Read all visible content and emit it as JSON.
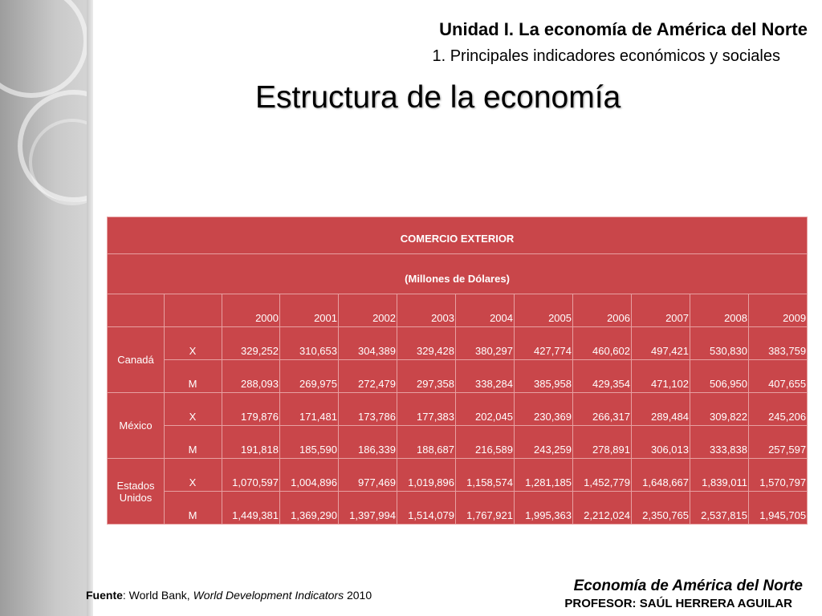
{
  "header": {
    "unit_title": "Unidad I. La economía de América del Norte",
    "subtitle": "1. Principales indicadores económicos y sociales"
  },
  "slide": {
    "title": "Estructura de la economía"
  },
  "table": {
    "title": "COMERCIO EXTERIOR",
    "units": "(Millones de Dólares)",
    "years": [
      "2000",
      "2001",
      "2002",
      "2003",
      "2004",
      "2005",
      "2006",
      "2007",
      "2008",
      "2009"
    ],
    "countries": [
      {
        "name": "Canadá",
        "rows": [
          {
            "type": "X",
            "values": [
              "329,252",
              "310,653",
              "304,389",
              "329,428",
              "380,297",
              "427,774",
              "460,602",
              "497,421",
              "530,830",
              "383,759"
            ]
          },
          {
            "type": "M",
            "values": [
              "288,093",
              "269,975",
              "272,479",
              "297,358",
              "338,284",
              "385,958",
              "429,354",
              "471,102",
              "506,950",
              "407,655"
            ]
          }
        ]
      },
      {
        "name": "México",
        "rows": [
          {
            "type": "X",
            "values": [
              "179,876",
              "171,481",
              "173,786",
              "177,383",
              "202,045",
              "230,369",
              "266,317",
              "289,484",
              "309,822",
              "245,206"
            ]
          },
          {
            "type": "M",
            "values": [
              "191,818",
              "185,590",
              "186,339",
              "188,687",
              "216,589",
              "243,259",
              "278,891",
              "306,013",
              "333,838",
              "257,597"
            ]
          }
        ]
      },
      {
        "name": "Estados Unidos",
        "rows": [
          {
            "type": "X",
            "values": [
              "1,070,597",
              "1,004,896",
              "977,469",
              "1,019,896",
              "1,158,574",
              "1,281,185",
              "1,452,779",
              "1,648,667",
              "1,839,011",
              "1,570,797"
            ]
          },
          {
            "type": "M",
            "values": [
              "1,449,381",
              "1,369,290",
              "1,397,994",
              "1,514,079",
              "1,767,921",
              "1,995,363",
              "2,212,024",
              "2,350,765",
              "2,537,815",
              "1,945,705"
            ]
          }
        ]
      }
    ]
  },
  "source": {
    "label": "Fuente",
    "text": ": World Bank, ",
    "publication": "World Development Indicators",
    "year": "2010"
  },
  "footer": {
    "course": "Economía de América del Norte",
    "professor": "PROFESOR: SAÚL HERRERA AGUILAR"
  },
  "colors": {
    "table_bg": "#c9464a",
    "table_border": "#e7a0a1",
    "sidebar": "#b5b5b5"
  }
}
